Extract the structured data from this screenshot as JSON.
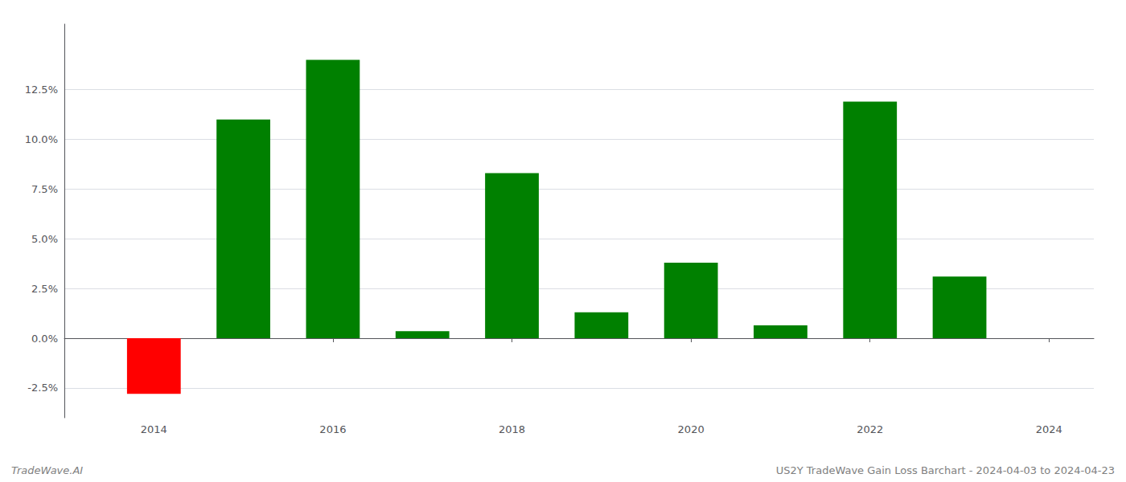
{
  "chart_data": {
    "type": "bar",
    "x": [
      2014,
      2015,
      2016,
      2017,
      2018,
      2019,
      2020,
      2021,
      2022,
      2023
    ],
    "values": [
      -0.028,
      0.11,
      0.14,
      0.0035,
      0.083,
      0.013,
      0.038,
      0.0065,
      0.119,
      0.031
    ],
    "colors": [
      "#ff0000",
      "#008000",
      "#008000",
      "#008000",
      "#008000",
      "#008000",
      "#008000",
      "#008000",
      "#008000",
      "#008000"
    ],
    "xlim": [
      2013.0,
      2024.5
    ],
    "xticks": [
      2014,
      2016,
      2018,
      2020,
      2022,
      2024
    ],
    "ylim": [
      -0.04,
      0.158
    ],
    "yticks": [
      {
        "value": -0.025,
        "label": "-2.5%"
      },
      {
        "value": 0.0,
        "label": "0.0%"
      },
      {
        "value": 0.025,
        "label": "2.5%"
      },
      {
        "value": 0.05,
        "label": "5.0%"
      },
      {
        "value": 0.075,
        "label": "7.5%"
      },
      {
        "value": 0.1,
        "label": "10.0%"
      },
      {
        "value": 0.125,
        "label": "12.5%"
      }
    ],
    "grid": true,
    "annotations": [
      "TradeWave.AI",
      "US2Y TradeWave Gain Loss Barchart - 2024-04-03 to 2024-04-23"
    ]
  }
}
